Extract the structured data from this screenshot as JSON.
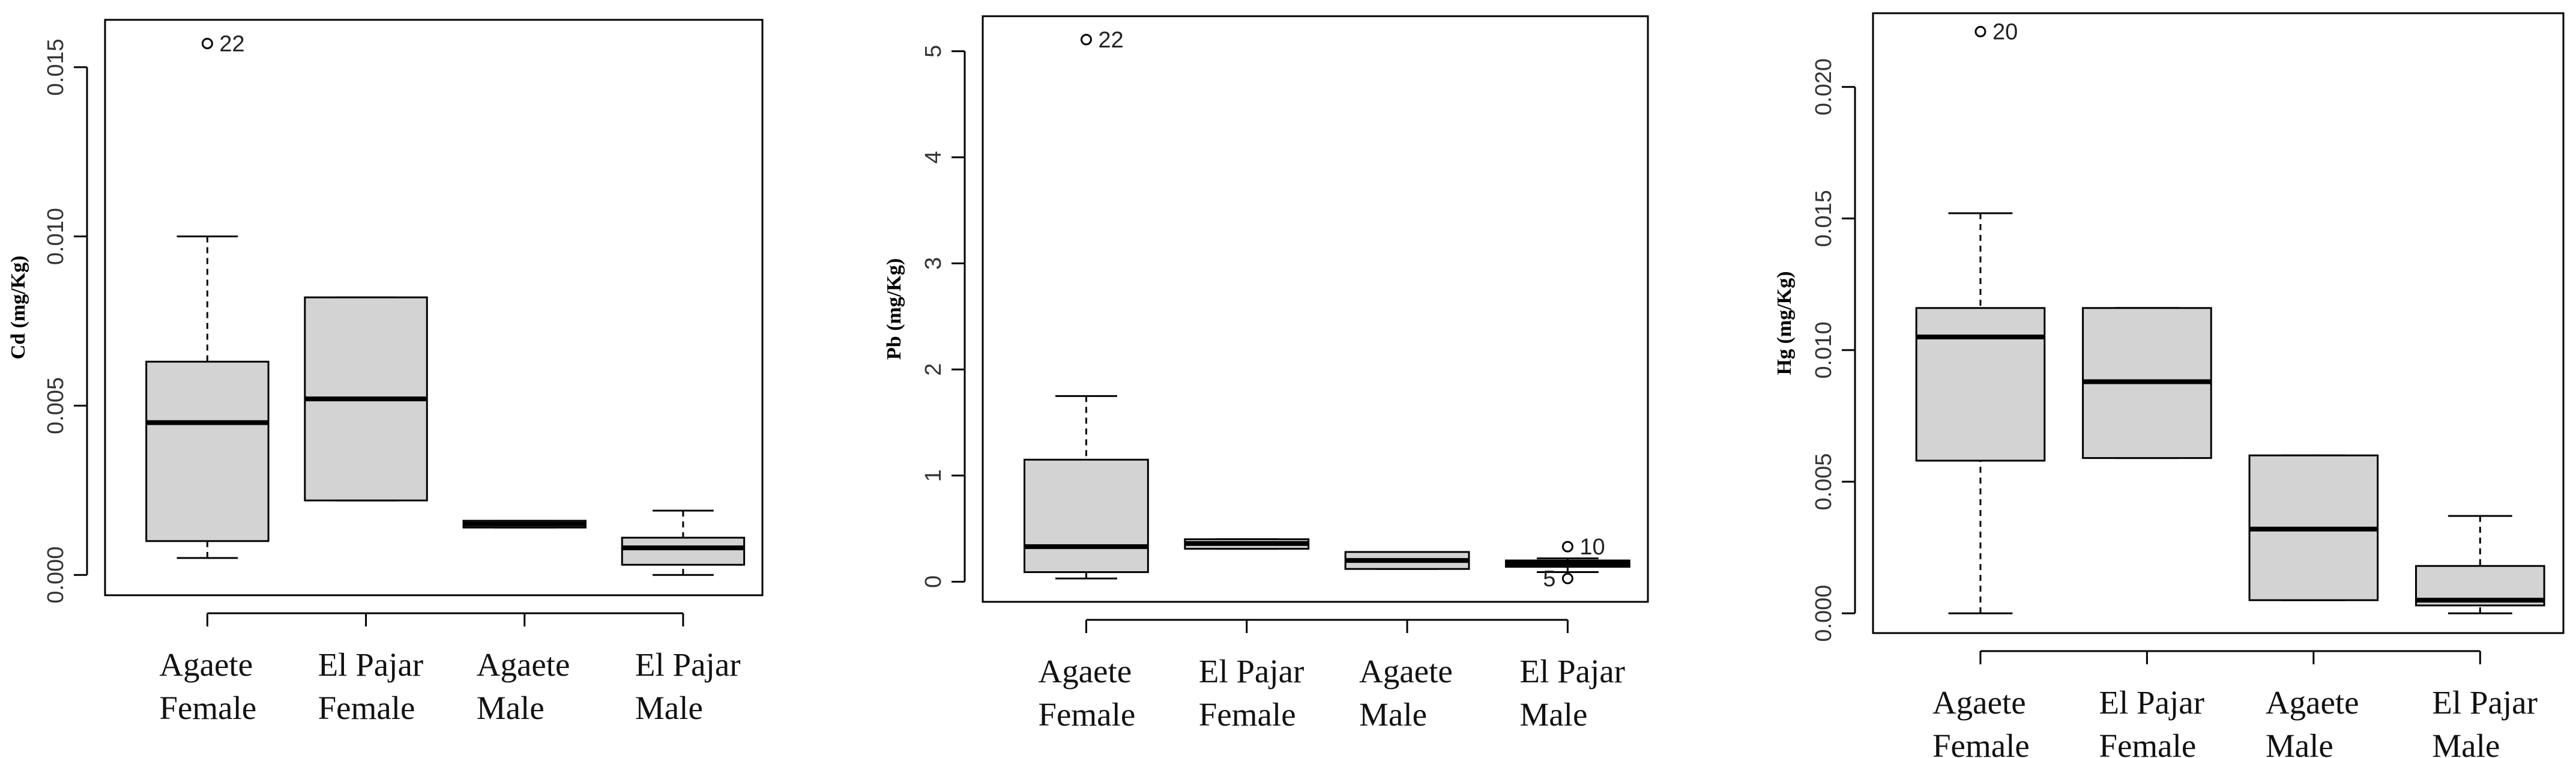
{
  "chart_data": [
    {
      "type": "box",
      "ylabel": "Cd (mg/Kg)",
      "categories": [
        "Agaete Female",
        "El Pajar Female",
        "Agaete Male",
        "El Pajar Male"
      ],
      "boxes": [
        {
          "whislo": 0.0005,
          "q1": 0.001,
          "med": 0.0045,
          "q3": 0.0063,
          "whishi": 0.01,
          "outliers": [
            0.0157
          ],
          "outlier_ids": [
            "22"
          ]
        },
        {
          "whislo": 0.0022,
          "q1": 0.0022,
          "med": 0.0052,
          "q3": 0.0082,
          "whishi": 0.0082,
          "outliers": [],
          "outlier_ids": []
        },
        {
          "whislo": 0.0014,
          "q1": 0.0014,
          "med": 0.0015,
          "q3": 0.0016,
          "whishi": 0.0016,
          "outliers": [],
          "outlier_ids": []
        },
        {
          "whislo": 0,
          "q1": 0.0003,
          "med": 0.0008,
          "q3": 0.0011,
          "whishi": 0.0019,
          "outliers": [],
          "outlier_ids": []
        }
      ],
      "color": "#d3d3d3",
      "ylim": [
        -0.0006,
        0.0164
      ],
      "yticks": [
        {
          "value": 0,
          "label": "0.000"
        },
        {
          "value": 0.005,
          "label": "0.005"
        },
        {
          "value": 0.01,
          "label": "0.010"
        },
        {
          "value": 0.015,
          "label": "0.015"
        }
      ]
    },
    {
      "type": "box",
      "ylabel": "Pb (mg/Kg)",
      "categories": [
        "Agaete Female",
        "El Pajar Female",
        "Agaete Male",
        "El Pajar Male"
      ],
      "boxes": [
        {
          "whislo": 0.03,
          "q1": 0.09,
          "med": 0.33,
          "q3": 1.15,
          "whishi": 1.75,
          "outliers": [
            5.11
          ],
          "outlier_ids": [
            "22"
          ]
        },
        {
          "whislo": 0.31,
          "q1": 0.31,
          "med": 0.36,
          "q3": 0.4,
          "whishi": 0.4,
          "outliers": [],
          "outlier_ids": []
        },
        {
          "whislo": 0.12,
          "q1": 0.12,
          "med": 0.2,
          "q3": 0.28,
          "whishi": 0.28,
          "outliers": [],
          "outlier_ids": []
        },
        {
          "whislo": 0.09,
          "q1": 0.14,
          "med": 0.17,
          "q3": 0.2,
          "whishi": 0.22,
          "outliers": [
            0.33,
            0.03
          ],
          "outlier_ids": [
            "10",
            "5"
          ]
        }
      ],
      "color": "#d3d3d3",
      "ylim": [
        -0.19,
        5.33
      ],
      "yticks": [
        0,
        1,
        2,
        3,
        4,
        5
      ]
    },
    {
      "type": "box",
      "ylabel": "Hg (mg/Kg)",
      "categories": [
        "Agaete Female",
        "El Pajar Female",
        "Agaete Male",
        "El Pajar Male"
      ],
      "boxes": [
        {
          "whislo": 0,
          "q1": 0.0058,
          "med": 0.0105,
          "q3": 0.0116,
          "whishi": 0.0152,
          "outliers": [
            0.0221
          ],
          "outlier_ids": [
            "20"
          ]
        },
        {
          "whislo": 0.0059,
          "q1": 0.0059,
          "med": 0.0088,
          "q3": 0.0116,
          "whishi": 0.0116,
          "outliers": [],
          "outlier_ids": []
        },
        {
          "whislo": 0.0005,
          "q1": 0.0005,
          "med": 0.0032,
          "q3": 0.006,
          "whishi": 0.006,
          "outliers": [],
          "outlier_ids": []
        },
        {
          "whislo": 0,
          "q1": 0.0003,
          "med": 0.0005,
          "q3": 0.0018,
          "whishi": 0.0037,
          "outliers": [],
          "outlier_ids": []
        }
      ],
      "color": "#d3d3d3",
      "ylim": [
        -0.00075,
        0.0228
      ],
      "yticks": [
        {
          "value": 0,
          "label": "0.000"
        },
        {
          "value": 0.005,
          "label": "0.005"
        },
        {
          "value": 0.01,
          "label": "0.010"
        },
        {
          "value": 0.015,
          "label": "0.015"
        },
        {
          "value": 0.02,
          "label": "0.020"
        }
      ]
    }
  ]
}
